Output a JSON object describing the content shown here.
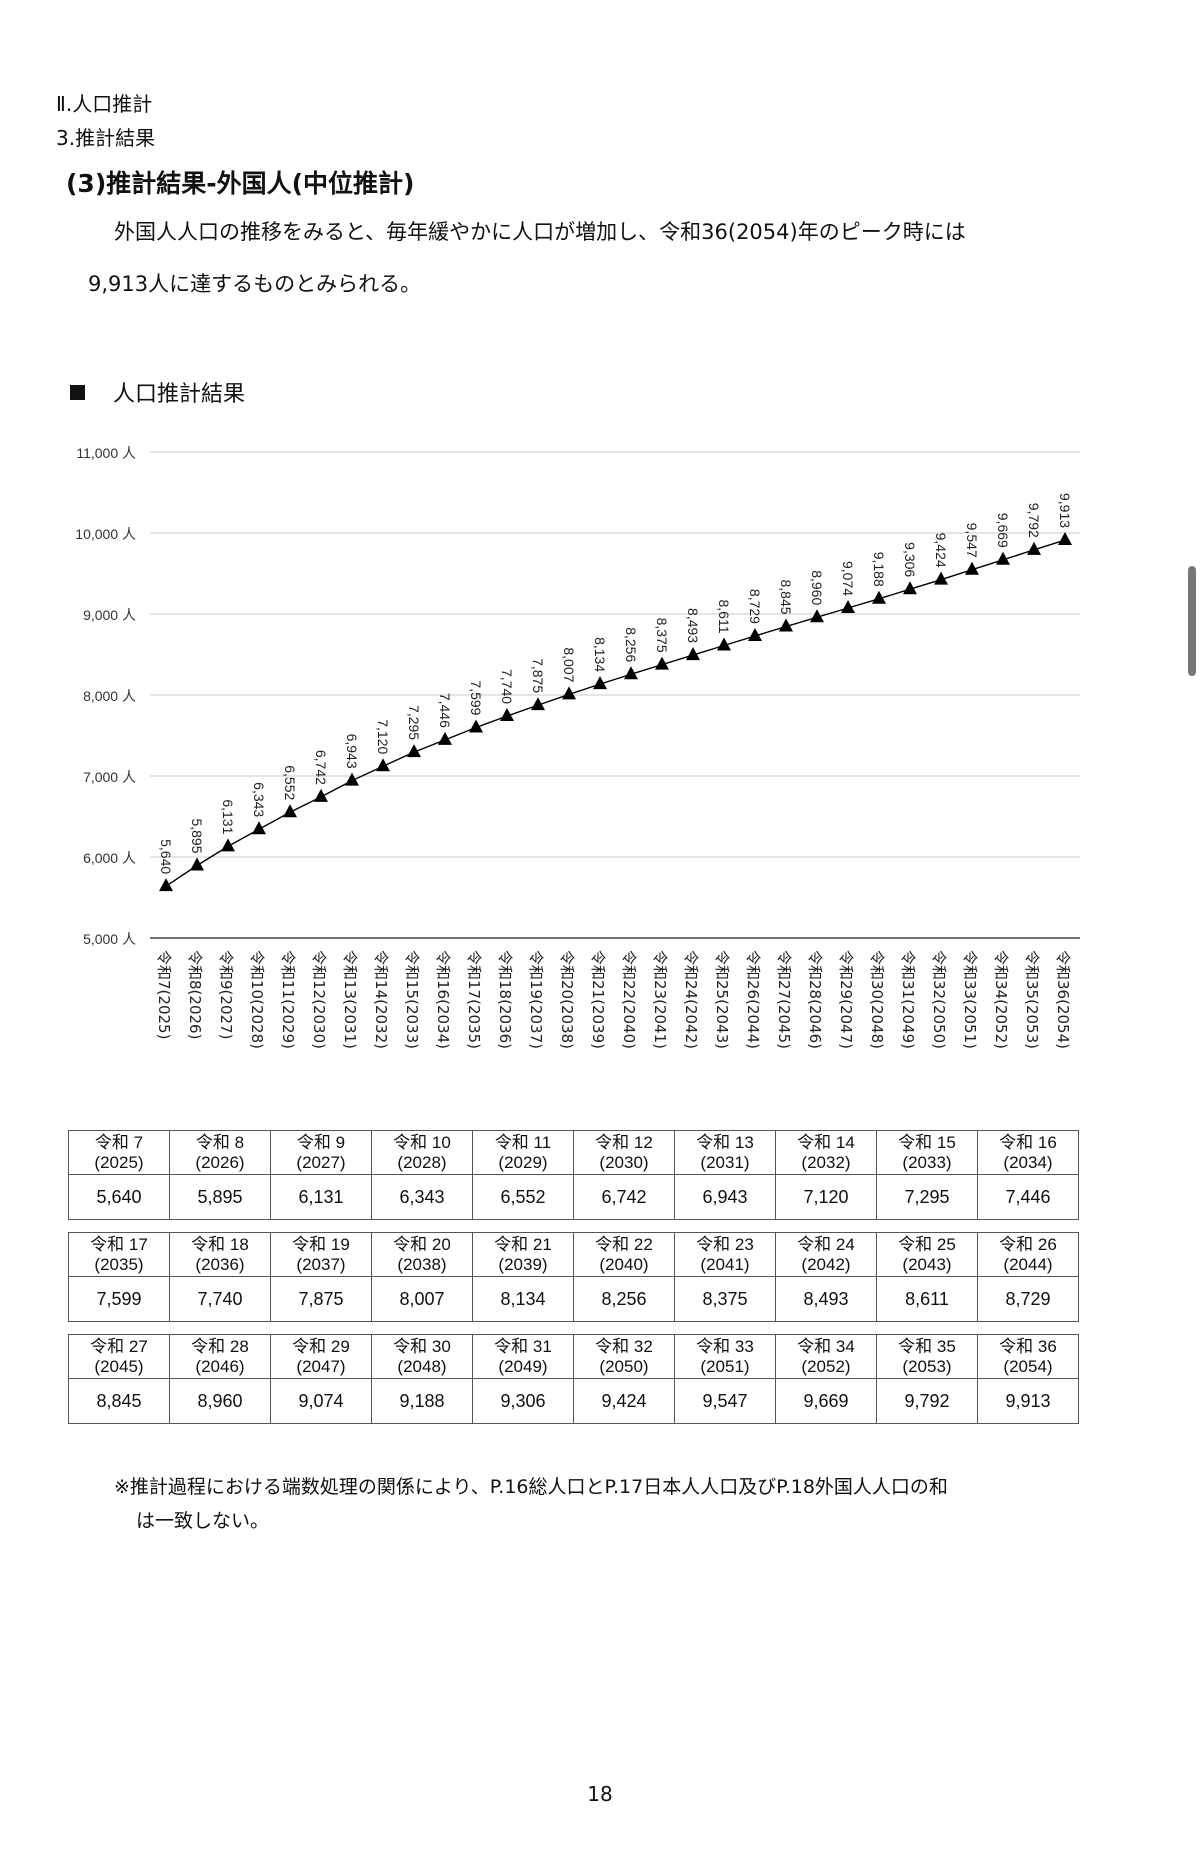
{
  "section": {
    "chapter": "Ⅱ.人口推計",
    "subsection": "3.推計結果",
    "heading": "(3)推計結果-外国人(中位推計)"
  },
  "intro": {
    "line1": "外国人人口の推移をみると、毎年緩やかに人口が増加し、令和36(2054)年のピーク時には",
    "line2": "9,913人に達するものとみられる。"
  },
  "chart_heading": "人口推計結果",
  "chart_data": {
    "type": "line",
    "title": "",
    "xlabel": "",
    "ylabel": "",
    "ylim": [
      5000,
      11000
    ],
    "yticks": [
      "5,000 人",
      "6,000 人",
      "7,000 人",
      "8,000 人",
      "9,000 人",
      "10,000 人",
      "11,000 人"
    ],
    "grid": true,
    "marker": "triangle",
    "categories": [
      "令和7(2025)",
      "令和8(2026)",
      "令和9(2027)",
      "令和10(2028)",
      "令和11(2029)",
      "令和12(2030)",
      "令和13(2031)",
      "令和14(2032)",
      "令和15(2033)",
      "令和16(2034)",
      "令和17(2035)",
      "令和18(2036)",
      "令和19(2037)",
      "令和20(2038)",
      "令和21(2039)",
      "令和22(2040)",
      "令和23(2041)",
      "令和24(2042)",
      "令和25(2043)",
      "令和26(2044)",
      "令和27(2045)",
      "令和28(2046)",
      "令和29(2047)",
      "令和30(2048)",
      "令和31(2049)",
      "令和32(2050)",
      "令和33(2051)",
      "令和34(2052)",
      "令和35(2053)",
      "令和36(2054)"
    ],
    "values": [
      5640,
      5895,
      6131,
      6343,
      6552,
      6742,
      6943,
      7120,
      7295,
      7446,
      7599,
      7740,
      7875,
      8007,
      8134,
      8256,
      8375,
      8493,
      8611,
      8729,
      8845,
      8960,
      9074,
      9188,
      9306,
      9424,
      9547,
      9669,
      9792,
      9913
    ],
    "labels": [
      "5,640",
      "5,895",
      "6,131",
      "6,343",
      "6,552",
      "6,742",
      "6,943",
      "7,120",
      "7,295",
      "7,446",
      "7,599",
      "7,740",
      "7,875",
      "8,007",
      "8,134",
      "8,256",
      "8,375",
      "8,493",
      "8,611",
      "8,729",
      "8,845",
      "8,960",
      "9,074",
      "9,188",
      "9,306",
      "9,424",
      "9,547",
      "9,669",
      "9,792",
      "9,913"
    ]
  },
  "table": [
    {
      "headers": [
        [
          "令和 7",
          "(2025)"
        ],
        [
          "令和 8",
          "(2026)"
        ],
        [
          "令和 9",
          "(2027)"
        ],
        [
          "令和 10",
          "(2028)"
        ],
        [
          "令和 11",
          "(2029)"
        ],
        [
          "令和 12",
          "(2030)"
        ],
        [
          "令和 13",
          "(2031)"
        ],
        [
          "令和 14",
          "(2032)"
        ],
        [
          "令和 15",
          "(2033)"
        ],
        [
          "令和 16",
          "(2034)"
        ]
      ],
      "values": [
        "5,640",
        "5,895",
        "6,131",
        "6,343",
        "6,552",
        "6,742",
        "6,943",
        "7,120",
        "7,295",
        "7,446"
      ]
    },
    {
      "headers": [
        [
          "令和 17",
          "(2035)"
        ],
        [
          "令和 18",
          "(2036)"
        ],
        [
          "令和 19",
          "(2037)"
        ],
        [
          "令和 20",
          "(2038)"
        ],
        [
          "令和 21",
          "(2039)"
        ],
        [
          "令和 22",
          "(2040)"
        ],
        [
          "令和 23",
          "(2041)"
        ],
        [
          "令和 24",
          "(2042)"
        ],
        [
          "令和 25",
          "(2043)"
        ],
        [
          "令和 26",
          "(2044)"
        ]
      ],
      "values": [
        "7,599",
        "7,740",
        "7,875",
        "8,007",
        "8,134",
        "8,256",
        "8,375",
        "8,493",
        "8,611",
        "8,729"
      ]
    },
    {
      "headers": [
        [
          "令和 27",
          "(2045)"
        ],
        [
          "令和 28",
          "(2046)"
        ],
        [
          "令和 29",
          "(2047)"
        ],
        [
          "令和 30",
          "(2048)"
        ],
        [
          "令和 31",
          "(2049)"
        ],
        [
          "令和 32",
          "(2050)"
        ],
        [
          "令和 33",
          "(2051)"
        ],
        [
          "令和 34",
          "(2052)"
        ],
        [
          "令和 35",
          "(2053)"
        ],
        [
          "令和 36",
          "(2054)"
        ]
      ],
      "values": [
        "8,845",
        "8,960",
        "9,074",
        "9,188",
        "9,306",
        "9,424",
        "9,547",
        "9,669",
        "9,792",
        "9,913"
      ]
    }
  ],
  "note": {
    "line1": "※推計過程における端数処理の関係により、P.16総人口とP.17日本人人口及びP.18外国人人口の和",
    "line2": "は一致しない。"
  },
  "page_number": "18",
  "colors": {
    "line": "#000000",
    "grid": "#c8c8c8",
    "axis": "#444444",
    "text": "#111111"
  }
}
